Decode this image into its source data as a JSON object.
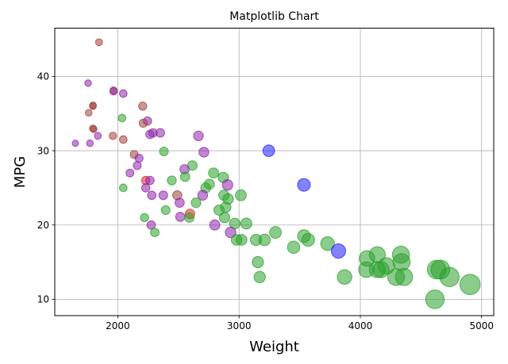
{
  "chart_data": {
    "type": "scatter",
    "title": "Matplotlib Chart",
    "xlabel": "Weight",
    "ylabel": "MPG",
    "xlim": [
      1480,
      5100
    ],
    "ylim": [
      7.8,
      46.5
    ],
    "xticks": [
      2000,
      3000,
      4000,
      5000
    ],
    "yticks": [
      10,
      20,
      30,
      40
    ],
    "grid": true,
    "legend": "none",
    "colors": {
      "green": "#2ca02c",
      "purple": "#8e24aa",
      "brown": "#a0403c",
      "red": "#e8201c",
      "blue": "#1e1eff"
    },
    "marker_alpha": 0.55,
    "points": [
      {
        "x": 1845,
        "y": 44.6,
        "c": "brown"
      },
      {
        "x": 1755,
        "y": 39.1,
        "c": "purple"
      },
      {
        "x": 1965,
        "y": 38.1,
        "c": "brown"
      },
      {
        "x": 1965,
        "y": 38.0,
        "c": "purple"
      },
      {
        "x": 2045,
        "y": 37.7,
        "c": "purple"
      },
      {
        "x": 1795,
        "y": 36.1,
        "c": "brown"
      },
      {
        "x": 1795,
        "y": 36.0,
        "c": "brown"
      },
      {
        "x": 2205,
        "y": 36.0,
        "c": "brown"
      },
      {
        "x": 1760,
        "y": 35.1,
        "c": "brown"
      },
      {
        "x": 2035,
        "y": 34.4,
        "c": "green"
      },
      {
        "x": 2245,
        "y": 34.0,
        "c": "purple"
      },
      {
        "x": 2210,
        "y": 33.7,
        "c": "brown"
      },
      {
        "x": 1795,
        "y": 33.0,
        "c": "brown"
      },
      {
        "x": 1800,
        "y": 32.9,
        "c": "brown"
      },
      {
        "x": 2290,
        "y": 32.4,
        "c": "purple"
      },
      {
        "x": 2350,
        "y": 32.4,
        "c": "purple"
      },
      {
        "x": 2265,
        "y": 32.2,
        "c": "purple"
      },
      {
        "x": 1835,
        "y": 32.0,
        "c": "purple"
      },
      {
        "x": 1960,
        "y": 32.0,
        "c": "brown"
      },
      {
        "x": 2665,
        "y": 32.0,
        "c": "purple"
      },
      {
        "x": 2045,
        "y": 31.5,
        "c": "brown"
      },
      {
        "x": 1650,
        "y": 31.0,
        "c": "purple"
      },
      {
        "x": 1770,
        "y": 31.0,
        "c": "purple"
      },
      {
        "x": 3245,
        "y": 30.0,
        "c": "blue"
      },
      {
        "x": 2380,
        "y": 29.9,
        "c": "green"
      },
      {
        "x": 2710,
        "y": 29.8,
        "c": "purple"
      },
      {
        "x": 2135,
        "y": 29.5,
        "c": "brown"
      },
      {
        "x": 2175,
        "y": 29.0,
        "c": "purple"
      },
      {
        "x": 2160,
        "y": 28.0,
        "c": "purple"
      },
      {
        "x": 2615,
        "y": 28.0,
        "c": "green"
      },
      {
        "x": 2550,
        "y": 27.5,
        "c": "purple"
      },
      {
        "x": 2100,
        "y": 27.0,
        "c": "purple"
      },
      {
        "x": 2790,
        "y": 27.0,
        "c": "green"
      },
      {
        "x": 2555,
        "y": 26.5,
        "c": "green"
      },
      {
        "x": 2870,
        "y": 26.4,
        "c": "green"
      },
      {
        "x": 2445,
        "y": 26.0,
        "c": "green"
      },
      {
        "x": 2230,
        "y": 26.0,
        "c": "red"
      },
      {
        "x": 2265,
        "y": 26.0,
        "c": "purple"
      },
      {
        "x": 2755,
        "y": 25.5,
        "c": "green"
      },
      {
        "x": 3535,
        "y": 25.4,
        "c": "blue"
      },
      {
        "x": 2905,
        "y": 25.4,
        "c": "purple"
      },
      {
        "x": 2725,
        "y": 25.0,
        "c": "green"
      },
      {
        "x": 2045,
        "y": 25.0,
        "c": "green"
      },
      {
        "x": 2230,
        "y": 25.0,
        "c": "purple"
      },
      {
        "x": 2490,
        "y": 24.0,
        "c": "brown"
      },
      {
        "x": 2375,
        "y": 24.0,
        "c": "purple"
      },
      {
        "x": 2280,
        "y": 24.0,
        "c": "purple"
      },
      {
        "x": 2700,
        "y": 24.0,
        "c": "purple"
      },
      {
        "x": 2875,
        "y": 24.0,
        "c": "green"
      },
      {
        "x": 3015,
        "y": 24.0,
        "c": "green"
      },
      {
        "x": 2910,
        "y": 23.5,
        "c": "green"
      },
      {
        "x": 2645,
        "y": 23.0,
        "c": "green"
      },
      {
        "x": 2510,
        "y": 23.0,
        "c": "purple"
      },
      {
        "x": 2890,
        "y": 22.4,
        "c": "green"
      },
      {
        "x": 2395,
        "y": 22.0,
        "c": "green"
      },
      {
        "x": 2835,
        "y": 22.0,
        "c": "green"
      },
      {
        "x": 2595,
        "y": 21.5,
        "c": "red"
      },
      {
        "x": 2515,
        "y": 21.1,
        "c": "purple"
      },
      {
        "x": 2220,
        "y": 21.0,
        "c": "green"
      },
      {
        "x": 2590,
        "y": 21.0,
        "c": "green"
      },
      {
        "x": 2880,
        "y": 21.0,
        "c": "green"
      },
      {
        "x": 3060,
        "y": 20.2,
        "c": "green"
      },
      {
        "x": 2965,
        "y": 20.2,
        "c": "green"
      },
      {
        "x": 2800,
        "y": 20.0,
        "c": "purple"
      },
      {
        "x": 2275,
        "y": 20.0,
        "c": "purple"
      },
      {
        "x": 2305,
        "y": 19.0,
        "c": "green"
      },
      {
        "x": 2930,
        "y": 19.0,
        "c": "purple"
      },
      {
        "x": 3300,
        "y": 19.0,
        "c": "green"
      },
      {
        "x": 3535,
        "y": 18.5,
        "c": "green"
      },
      {
        "x": 2980,
        "y": 18.0,
        "c": "green"
      },
      {
        "x": 3020,
        "y": 18.0,
        "c": "green"
      },
      {
        "x": 3140,
        "y": 18.0,
        "c": "green"
      },
      {
        "x": 3210,
        "y": 18.0,
        "c": "green"
      },
      {
        "x": 3570,
        "y": 18.0,
        "c": "green"
      },
      {
        "x": 3730,
        "y": 17.5,
        "c": "green"
      },
      {
        "x": 3450,
        "y": 17.0,
        "c": "green"
      },
      {
        "x": 3820,
        "y": 16.5,
        "c": "blue"
      },
      {
        "x": 4140,
        "y": 16.0,
        "c": "green"
      },
      {
        "x": 4335,
        "y": 16.0,
        "c": "green"
      },
      {
        "x": 4055,
        "y": 15.5,
        "c": "green"
      },
      {
        "x": 3155,
        "y": 15.0,
        "c": "green"
      },
      {
        "x": 4340,
        "y": 15.0,
        "c": "green"
      },
      {
        "x": 4215,
        "y": 14.5,
        "c": "green"
      },
      {
        "x": 4630,
        "y": 14.0,
        "c": "green"
      },
      {
        "x": 4660,
        "y": 14.0,
        "c": "green"
      },
      {
        "x": 4050,
        "y": 14.0,
        "c": "green"
      },
      {
        "x": 4140,
        "y": 14.0,
        "c": "green"
      },
      {
        "x": 4170,
        "y": 14.0,
        "c": "green"
      },
      {
        "x": 3170,
        "y": 13.0,
        "c": "green"
      },
      {
        "x": 3870,
        "y": 13.0,
        "c": "green"
      },
      {
        "x": 4295,
        "y": 13.0,
        "c": "green"
      },
      {
        "x": 4360,
        "y": 13.0,
        "c": "green"
      },
      {
        "x": 4735,
        "y": 13.0,
        "c": "green"
      },
      {
        "x": 4905,
        "y": 12.0,
        "c": "green"
      },
      {
        "x": 4615,
        "y": 10.0,
        "c": "green"
      }
    ]
  }
}
